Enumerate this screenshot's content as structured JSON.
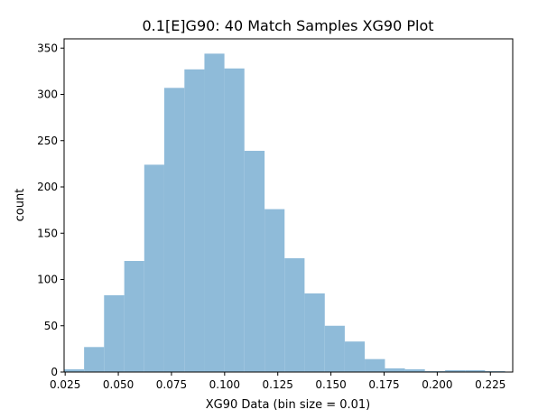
{
  "chart_data": {
    "type": "bar",
    "title": "0.1[E]G90: 40 Match Samples XG90 Plot",
    "xlabel": "XG90 Data (bin size = 0.01)",
    "ylabel": "count",
    "xlim": [
      0.0245,
      0.2355
    ],
    "ylim": [
      0,
      360
    ],
    "x_ticks": [
      0.025,
      0.05,
      0.075,
      0.1,
      0.125,
      0.15,
      0.175,
      0.2,
      0.225
    ],
    "x_tick_labels": [
      "0.025",
      "0.050",
      "0.075",
      "0.100",
      "0.125",
      "0.150",
      "0.175",
      "0.200",
      "0.225"
    ],
    "y_ticks": [
      0,
      50,
      100,
      150,
      200,
      250,
      300,
      350
    ],
    "y_tick_labels": [
      "0",
      "50",
      "100",
      "150",
      "200",
      "250",
      "300",
      "350"
    ],
    "bar_color": "#8fbbd9",
    "bins": [
      {
        "start": 0.0245,
        "end": 0.0339,
        "count": 3
      },
      {
        "start": 0.0339,
        "end": 0.0433,
        "count": 27
      },
      {
        "start": 0.0433,
        "end": 0.0528,
        "count": 83
      },
      {
        "start": 0.0528,
        "end": 0.0622,
        "count": 120
      },
      {
        "start": 0.0622,
        "end": 0.0716,
        "count": 224
      },
      {
        "start": 0.0716,
        "end": 0.0811,
        "count": 307
      },
      {
        "start": 0.0811,
        "end": 0.0905,
        "count": 327
      },
      {
        "start": 0.0905,
        "end": 0.0999,
        "count": 344
      },
      {
        "start": 0.0999,
        "end": 0.1093,
        "count": 328
      },
      {
        "start": 0.1093,
        "end": 0.1188,
        "count": 239
      },
      {
        "start": 0.1188,
        "end": 0.1282,
        "count": 176
      },
      {
        "start": 0.1282,
        "end": 0.1376,
        "count": 123
      },
      {
        "start": 0.1376,
        "end": 0.1471,
        "count": 85
      },
      {
        "start": 0.1471,
        "end": 0.1565,
        "count": 50
      },
      {
        "start": 0.1565,
        "end": 0.1659,
        "count": 33
      },
      {
        "start": 0.1659,
        "end": 0.1754,
        "count": 14
      },
      {
        "start": 0.1754,
        "end": 0.1848,
        "count": 4
      },
      {
        "start": 0.1848,
        "end": 0.1942,
        "count": 3
      },
      {
        "start": 0.1942,
        "end": 0.2037,
        "count": 1
      },
      {
        "start": 0.2037,
        "end": 0.2131,
        "count": 2
      },
      {
        "start": 0.2131,
        "end": 0.2225,
        "count": 2
      },
      {
        "start": 0.2225,
        "end": 0.2319,
        "count": 1
      }
    ]
  }
}
